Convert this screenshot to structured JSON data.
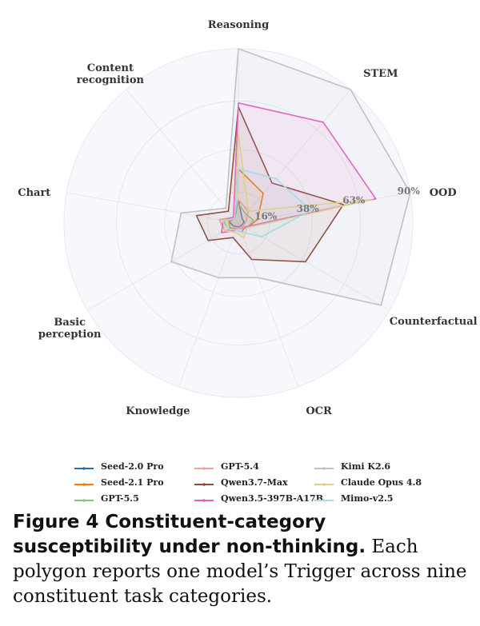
{
  "chart_data": {
    "type": "radar",
    "categories": [
      "Reasoning",
      "STEM",
      "OOD",
      "Counterfactual",
      "OCR",
      "Knowledge",
      "Basic perception",
      "Chart",
      "Content recognition"
    ],
    "radial_ticks": [
      "16%",
      "38%",
      "63%",
      "90%"
    ],
    "tick_values": [
      16,
      38,
      63,
      90
    ],
    "rmax": 90,
    "grid": true,
    "legend_position": "bottom",
    "series": [
      {
        "name": "Seed-2.0 Pro",
        "color": "#1f6fb5",
        "values": [
          12,
          3,
          3,
          2,
          2,
          2,
          3,
          5,
          3
        ]
      },
      {
        "name": "Seed-2.1 Pro",
        "color": "#f57c00",
        "values": [
          28,
          20,
          10,
          5,
          3,
          3,
          5,
          5,
          3
        ]
      },
      {
        "name": "GPT-5.5",
        "color": "#7ecb6f",
        "values": [
          10,
          6,
          8,
          5,
          3,
          3,
          6,
          8,
          4
        ]
      },
      {
        "name": "GPT-5.4",
        "color": "#f4a0a0",
        "values": [
          12,
          8,
          4,
          3,
          3,
          3,
          8,
          10,
          4
        ]
      },
      {
        "name": "Qwen3.7-Max",
        "color": "#8b4a3a",
        "values": [
          60,
          27,
          55,
          40,
          20,
          8,
          18,
          22,
          8
        ]
      },
      {
        "name": "Qwen3.5-397B-A17B",
        "color": "#e55ec0",
        "values": [
          62,
          68,
          72,
          4,
          5,
          4,
          10,
          8,
          4
        ]
      },
      {
        "name": "Kimi K2.6",
        "color": "#c0c0c8",
        "values": [
          90,
          90,
          90,
          85,
          30,
          30,
          40,
          30,
          10
        ]
      },
      {
        "name": "Claude Opus 4.8",
        "color": "#ddd08a",
        "values": [
          46,
          8,
          70,
          5,
          8,
          5,
          8,
          8,
          3
        ]
      },
      {
        "name": "Mimo-v2.5",
        "color": "#a6daea",
        "values": [
          28,
          30,
          38,
          14,
          5,
          4,
          6,
          7,
          3
        ]
      }
    ]
  },
  "caption": {
    "head": "Figure 4  Constituent-category susceptibility under non-thinking.",
    "body": "Each polygon reports one model’s Trigger across nine constituent task categories."
  }
}
